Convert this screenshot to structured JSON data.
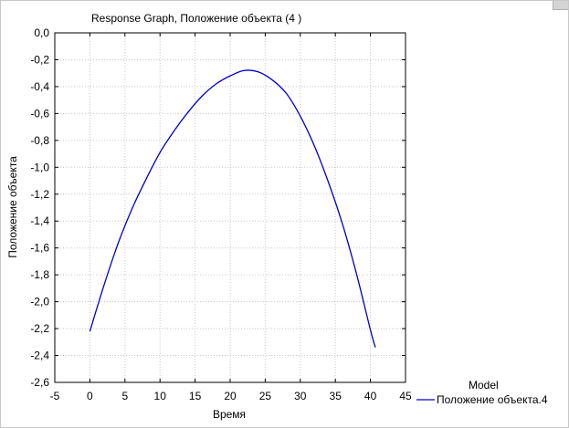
{
  "chart_data": {
    "type": "line",
    "title": "Response Graph, Положение объекта (4 )",
    "xlabel": "Время",
    "ylabel": "Положение объекта",
    "xlim": [
      -5,
      45
    ],
    "ylim": [
      -2.6,
      0.0
    ],
    "x_ticks": [
      -5,
      0,
      5,
      10,
      15,
      20,
      25,
      30,
      35,
      40,
      45
    ],
    "x_tick_labels": [
      "-5",
      "0",
      "5",
      "10",
      "15",
      "20",
      "25",
      "30",
      "35",
      "40",
      "45"
    ],
    "y_ticks": [
      0.0,
      -0.2,
      -0.4,
      -0.6,
      -0.8,
      -1.0,
      -1.2,
      -1.4,
      -1.6,
      -1.8,
      -2.0,
      -2.2,
      -2.4,
      -2.6
    ],
    "y_tick_labels": [
      "0,0",
      "-0,2",
      "-0,4",
      "-0,6",
      "-0,8",
      "-1,0",
      "-1,2",
      "-1,4",
      "-1,6",
      "-1,8",
      "-2,0",
      "-2,2",
      "-2,4",
      "-2,6"
    ],
    "grid": true,
    "legend_title": "Model",
    "legend_placement": "bottom-right",
    "series": [
      {
        "name": "Положение объекта.4",
        "color": "#0000cc",
        "x": [
          0,
          2,
          4,
          6,
          8,
          10,
          12,
          14,
          16,
          18,
          20,
          22,
          24,
          26,
          28,
          30,
          32,
          34,
          36,
          38,
          40,
          40.7
        ],
        "y": [
          -2.22,
          -1.88,
          -1.57,
          -1.31,
          -1.09,
          -0.89,
          -0.73,
          -0.59,
          -0.47,
          -0.38,
          -0.32,
          -0.28,
          -0.29,
          -0.35,
          -0.45,
          -0.62,
          -0.84,
          -1.11,
          -1.42,
          -1.79,
          -2.21,
          -2.34
        ]
      }
    ]
  },
  "colors": {
    "frame": "#000000",
    "grid": "#c8c8c8",
    "line": "#0000cc",
    "window_border": "#c8c8c8"
  }
}
